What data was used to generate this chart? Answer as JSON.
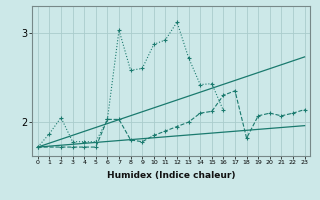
{
  "xlabel": "Humidex (Indice chaleur)",
  "bg_color": "#cce8e8",
  "grid_color": "#aacccc",
  "line_color": "#1a7a6e",
  "xlim": [
    -0.5,
    23.5
  ],
  "ylim": [
    1.62,
    3.3
  ],
  "yticks": [
    2,
    3
  ],
  "xticks": [
    0,
    1,
    2,
    3,
    4,
    5,
    6,
    7,
    8,
    9,
    10,
    11,
    12,
    13,
    14,
    15,
    16,
    17,
    18,
    19,
    20,
    21,
    22,
    23
  ],
  "line1_x": [
    0,
    23
  ],
  "line1_y": [
    1.72,
    1.96
  ],
  "line2_x": [
    0,
    23
  ],
  "line2_y": [
    1.72,
    2.73
  ],
  "series3_x": [
    0,
    2,
    3,
    4,
    5,
    6,
    7,
    8,
    9,
    10,
    11,
    12,
    13,
    14,
    15,
    16,
    17,
    18,
    19,
    20,
    21,
    22,
    23
  ],
  "series3_y": [
    1.72,
    1.72,
    1.72,
    1.72,
    1.72,
    2.03,
    2.03,
    1.8,
    1.78,
    1.85,
    1.9,
    1.95,
    2.0,
    2.1,
    2.12,
    2.3,
    2.35,
    1.82,
    2.07,
    2.1,
    2.07,
    2.1,
    2.14
  ],
  "series4_x": [
    0,
    1,
    2,
    3,
    4,
    5,
    6,
    7,
    8,
    9,
    10,
    11,
    12,
    13,
    14,
    15,
    16
  ],
  "series4_y": [
    1.72,
    1.87,
    2.05,
    1.78,
    1.78,
    1.78,
    2.03,
    3.03,
    2.58,
    2.6,
    2.87,
    2.92,
    3.12,
    2.72,
    2.42,
    2.43,
    2.13
  ]
}
